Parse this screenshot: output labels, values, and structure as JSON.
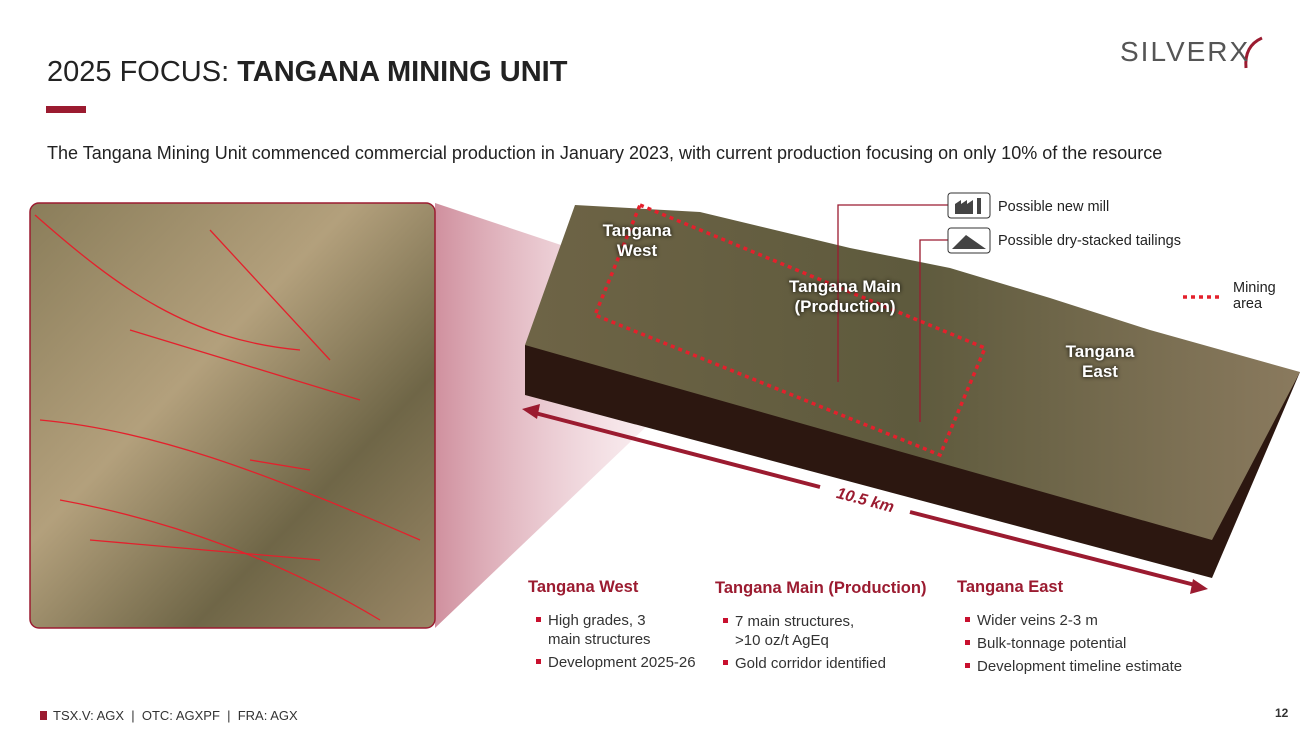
{
  "header": {
    "title_prefix": "2025 FOCUS:",
    "title_bold": "TANGANA MINING UNIT",
    "logo": "SILVERX"
  },
  "subtitle": "The Tangana Mining Unit commenced commercial production in January 2023, with current production focusing on only 10% of the resource",
  "map": {
    "labels": [
      "Tangana West",
      "Tangana Main (Production)",
      "Tangana East"
    ],
    "callouts": [
      "Possible new mill",
      "Possible dry-stacked tailings"
    ],
    "legend": "Mining area",
    "distance": "10.5 km"
  },
  "sections": [
    {
      "title": "Tangana West",
      "bullets": [
        "High grades, 3 main structures",
        "Development 2025-26"
      ]
    },
    {
      "title": "Tangana Main (Production)",
      "bullets": [
        "7 main structures, >10 oz/t AgEq",
        "Gold corridor identified"
      ]
    },
    {
      "title": "Tangana East",
      "bullets": [
        "Wider veins 2-3 m",
        "Bulk-tonnage potential",
        "Development timeline estimate"
      ]
    }
  ],
  "footer": {
    "tickers": "TSX.V: AGX  |  OTC: AGXPF  |  FRA: AGX",
    "page": "12"
  }
}
